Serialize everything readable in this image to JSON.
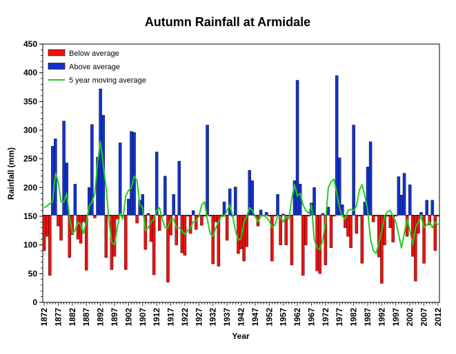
{
  "chart_data": {
    "type": "bar",
    "title": "Autumn Rainfall at Armidale",
    "xlabel": "Year",
    "ylabel": "Rainfall (mm)",
    "ylim": [
      0,
      450
    ],
    "y_ticks": [
      0,
      50,
      100,
      150,
      200,
      250,
      300,
      350,
      400,
      450
    ],
    "x_ticks": [
      1872,
      1877,
      1882,
      1887,
      1892,
      1897,
      1902,
      1907,
      1912,
      1917,
      1922,
      1927,
      1932,
      1937,
      1942,
      1947,
      1952,
      1957,
      1962,
      1967,
      1972,
      1977,
      1982,
      1987,
      1992,
      1997,
      2002,
      2007,
      2012
    ],
    "baseline": 152,
    "grid": false,
    "legend_position": "top-left",
    "colors": {
      "below": "#ee1111",
      "above": "#1133cc",
      "moving_average": "#22cc22"
    },
    "x": [
      1872,
      1873,
      1874,
      1875,
      1876,
      1877,
      1878,
      1879,
      1880,
      1881,
      1882,
      1883,
      1884,
      1885,
      1886,
      1887,
      1888,
      1889,
      1890,
      1891,
      1892,
      1893,
      1894,
      1895,
      1896,
      1897,
      1898,
      1899,
      1900,
      1901,
      1902,
      1903,
      1904,
      1905,
      1906,
      1907,
      1908,
      1909,
      1910,
      1911,
      1912,
      1913,
      1914,
      1915,
      1916,
      1917,
      1918,
      1919,
      1920,
      1921,
      1922,
      1923,
      1924,
      1925,
      1926,
      1927,
      1928,
      1929,
      1930,
      1931,
      1932,
      1933,
      1934,
      1935,
      1936,
      1937,
      1938,
      1939,
      1940,
      1941,
      1942,
      1943,
      1944,
      1945,
      1946,
      1947,
      1948,
      1949,
      1950,
      1951,
      1952,
      1953,
      1954,
      1955,
      1956,
      1957,
      1958,
      1959,
      1960,
      1961,
      1962,
      1963,
      1964,
      1965,
      1966,
      1967,
      1968,
      1969,
      1970,
      1971,
      1972,
      1973,
      1974,
      1975,
      1976,
      1977,
      1978,
      1979,
      1980,
      1981,
      1982,
      1983,
      1984,
      1985,
      1986,
      1987,
      1988,
      1989,
      1990,
      1991,
      1992,
      1993,
      1994,
      1995,
      1996,
      1997,
      1998,
      1999,
      2000,
      2001,
      2002,
      2003,
      2004,
      2005,
      2006,
      2007,
      2008,
      2009,
      2010,
      2011,
      2012
    ],
    "series": [
      {
        "name": "Below average / Above average",
        "values": [
          90,
          115,
          47,
          272,
          285,
          133,
          108,
          316,
          243,
          78,
          118,
          206,
          110,
          103,
          140,
          56,
          200,
          310,
          147,
          253,
          372,
          326,
          78,
          150,
          57,
          80,
          145,
          278,
          150,
          57,
          180,
          298,
          296,
          138,
          178,
          188,
          92,
          155,
          106,
          48,
          262,
          125,
          150,
          220,
          35,
          117,
          188,
          100,
          246,
          86,
          82,
          150,
          120,
          160,
          127,
          150,
          134,
          150,
          309,
          150,
          67,
          140,
          63,
          150,
          175,
          108,
          198,
          150,
          201,
          85,
          93,
          72,
          97,
          230,
          212,
          150,
          133,
          161,
          150,
          157,
          150,
          72,
          150,
          188,
          100,
          154,
          100,
          150,
          65,
          212,
          387,
          206,
          47,
          100,
          150,
          173,
          200,
          55,
          50,
          155,
          65,
          166,
          95,
          150,
          395,
          252,
          170,
          130,
          115,
          95,
          309,
          120,
          150,
          68,
          175,
          236,
          280,
          140,
          150,
          79,
          33,
          100,
          150,
          130,
          105,
          150,
          219,
          187,
          225,
          115,
          205,
          80,
          37,
          120,
          157,
          68,
          178,
          135,
          178,
          90,
          150
        ]
      },
      {
        "name": "5 year moving average",
        "values": [
          165,
          168,
          172,
          175,
          225,
          210,
          175,
          175,
          190,
          150,
          120,
          125,
          140,
          135,
          120,
          140,
          168,
          175,
          190,
          245,
          280,
          240,
          200,
          145,
          105,
          100,
          130,
          155,
          145,
          185,
          195,
          200,
          220,
          212,
          170,
          165,
          125,
          130,
          140,
          145,
          160,
          165,
          145,
          130,
          130,
          145,
          145,
          130,
          130,
          125,
          118,
          125,
          130,
          140,
          142,
          150,
          170,
          175,
          145,
          120,
          115,
          130,
          140,
          150,
          150,
          160,
          170,
          150,
          125,
          108,
          112,
          140,
          150,
          165,
          160,
          150,
          140,
          150,
          152,
          148,
          142,
          130,
          135,
          150,
          148,
          140,
          150,
          145,
          180,
          205,
          185,
          190,
          170,
          160,
          155,
          170,
          110,
          95,
          92,
          108,
          140,
          200,
          210,
          215,
          190,
          165,
          150,
          145,
          160,
          162,
          160,
          168,
          195,
          205,
          185,
          160,
          110,
          90,
          85,
          105,
          125,
          150,
          158,
          160,
          150,
          140,
          118,
          95,
          120,
          145,
          125,
          100,
          130,
          140,
          150,
          130,
          135,
          140,
          130,
          140,
          135
        ]
      }
    ],
    "legend": [
      "Below average",
      "Above average",
      "5 year moving average"
    ]
  }
}
